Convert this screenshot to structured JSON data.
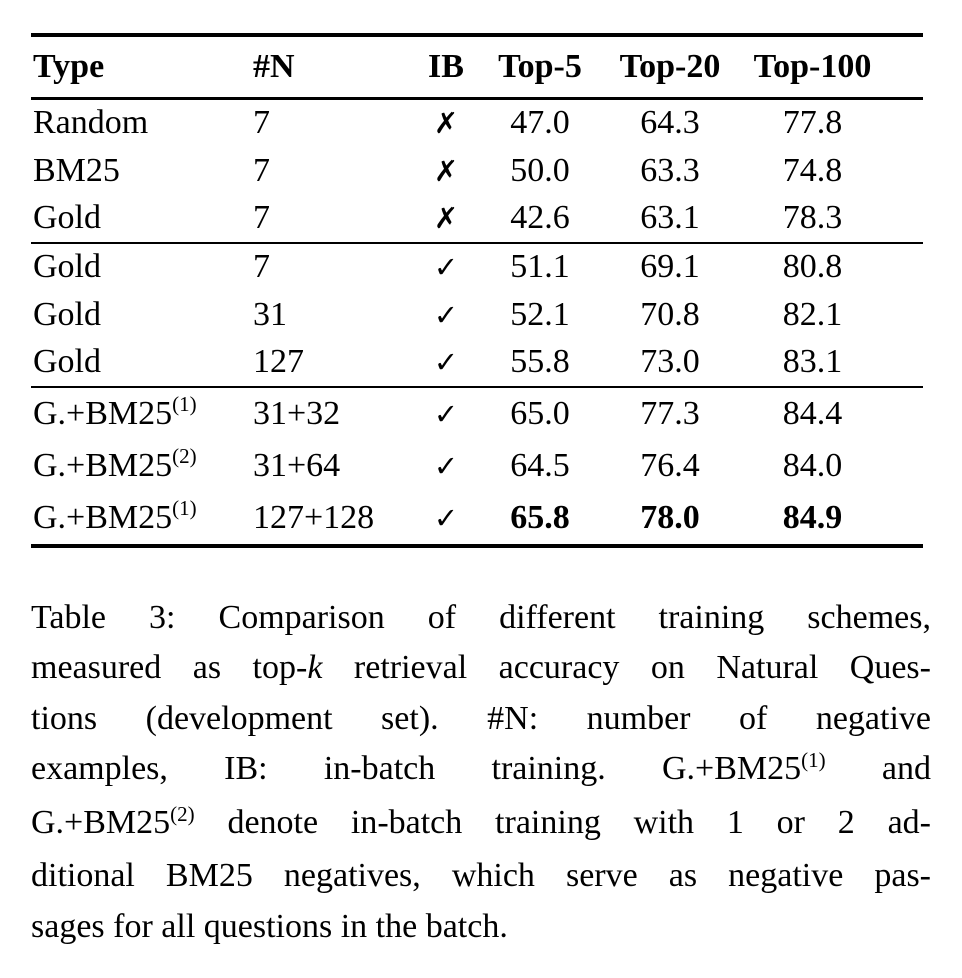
{
  "page": {
    "background_color": "#ffffff",
    "text_color": "#000000"
  },
  "table": {
    "headers": [
      {
        "key": "type",
        "label": "Type",
        "align": "left"
      },
      {
        "key": "n",
        "label": "#N",
        "align": "left"
      },
      {
        "key": "ib",
        "label": "IB",
        "align": "center"
      },
      {
        "key": "top5",
        "label": "Top-5",
        "align": "center"
      },
      {
        "key": "top20",
        "label": "Top-20",
        "align": "center"
      },
      {
        "key": "top100",
        "label": "Top-100",
        "align": "center"
      }
    ],
    "check_mark": "✓",
    "cross_mark": "✗",
    "groups": [
      {
        "rows": [
          {
            "type": "Random",
            "type_sup": "",
            "n": "7",
            "in_batch": false,
            "vals": [
              "47.0",
              "64.3",
              "77.8"
            ],
            "bold_vals": false
          },
          {
            "type": "BM25",
            "type_sup": "",
            "n": "7",
            "in_batch": false,
            "vals": [
              "50.0",
              "63.3",
              "74.8"
            ],
            "bold_vals": false
          },
          {
            "type": "Gold",
            "type_sup": "",
            "n": "7",
            "in_batch": false,
            "vals": [
              "42.6",
              "63.1",
              "78.3"
            ],
            "bold_vals": false
          }
        ]
      },
      {
        "rows": [
          {
            "type": "Gold",
            "type_sup": "",
            "n": "7",
            "in_batch": true,
            "vals": [
              "51.1",
              "69.1",
              "80.8"
            ],
            "bold_vals": false
          },
          {
            "type": "Gold",
            "type_sup": "",
            "n": "31",
            "in_batch": true,
            "vals": [
              "52.1",
              "70.8",
              "82.1"
            ],
            "bold_vals": false
          },
          {
            "type": "Gold",
            "type_sup": "",
            "n": "127",
            "in_batch": true,
            "vals": [
              "55.8",
              "73.0",
              "83.1"
            ],
            "bold_vals": false
          }
        ]
      },
      {
        "rows": [
          {
            "type": "G.+BM25",
            "type_sup": "(1)",
            "n": "31+32",
            "in_batch": true,
            "vals": [
              "65.0",
              "77.3",
              "84.4"
            ],
            "bold_vals": false
          },
          {
            "type": "G.+BM25",
            "type_sup": "(2)",
            "n": "31+64",
            "in_batch": true,
            "vals": [
              "64.5",
              "76.4",
              "84.0"
            ],
            "bold_vals": false
          },
          {
            "type": "G.+BM25",
            "type_sup": "(1)",
            "n": "127+128",
            "in_batch": true,
            "vals": [
              "65.8",
              "78.0",
              "84.9"
            ],
            "bold_vals": true
          }
        ]
      }
    ]
  },
  "caption": {
    "lines": [
      {
        "segments": [
          {
            "t": "Table 3:  Comparison of different training schemes,"
          }
        ]
      },
      {
        "segments": [
          {
            "t": "measured as top-"
          },
          {
            "t": "k",
            "s": "it"
          },
          {
            "t": " retrieval accuracy on Natural Ques-"
          }
        ]
      },
      {
        "segments": [
          {
            "t": "tions (development set).  #N: number of negative"
          }
        ]
      },
      {
        "segments": [
          {
            "t": "examples, IB: in-batch training.  G.+BM25"
          },
          {
            "t": "(1)",
            "s": "sup"
          },
          {
            "t": " and"
          }
        ]
      },
      {
        "segments": [
          {
            "t": "G.+BM25"
          },
          {
            "t": "(2)",
            "s": "sup"
          },
          {
            "t": " denote in-batch training with 1 or 2 ad-"
          }
        ]
      },
      {
        "segments": [
          {
            "t": "ditional BM25 negatives, which serve as negative pas-"
          }
        ]
      },
      {
        "segments": [
          {
            "t": "sages for all questions in the batch."
          }
        ],
        "last": true
      }
    ]
  }
}
